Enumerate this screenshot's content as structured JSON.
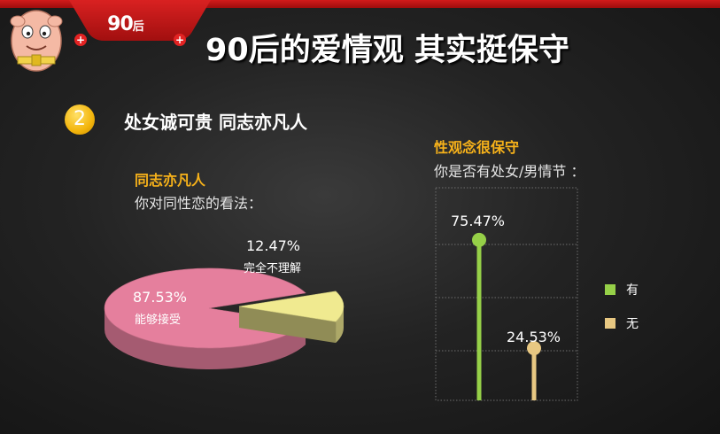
{
  "header": {
    "badge_main": "90",
    "badge_suffix": "后",
    "title": "90后的爱情观 其实挺保守"
  },
  "section": {
    "number": "2",
    "title": "处女诚可贵 同志亦凡人"
  },
  "colors": {
    "pink": "#e57f9d",
    "yellow": "#f0ea90",
    "green": "#96d048",
    "tan": "#e8c882",
    "orange": "#f7b21a",
    "red": "#d21b1b"
  },
  "chart_data": [
    {
      "type": "pie",
      "title": "同志亦凡人",
      "subtitle": "你对同性恋的看法：",
      "categories": [
        "能够接受",
        "完全不理解"
      ],
      "values": [
        87.53,
        12.47
      ],
      "value_labels": [
        "87.53%",
        "12.47%"
      ],
      "colors": [
        "#e57f9d",
        "#f0ea90"
      ],
      "legend": "none"
    },
    {
      "type": "bar",
      "title": "性观念很保守",
      "subtitle": "你是否有处女/男情节 ：",
      "categories": [
        "有",
        "无"
      ],
      "values": [
        75.47,
        24.53
      ],
      "value_labels": [
        "75.47%",
        "24.53%"
      ],
      "colors": [
        "#96d048",
        "#e8c882"
      ],
      "ylim": [
        0,
        100
      ],
      "grid": true,
      "legend": "right"
    }
  ]
}
